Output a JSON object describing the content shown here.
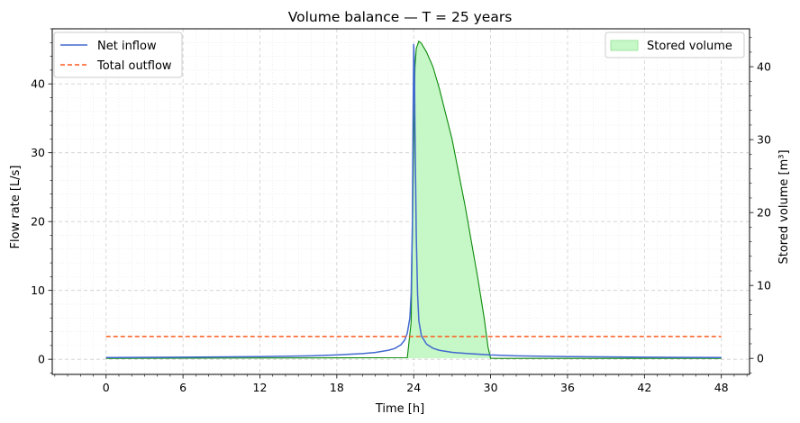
{
  "chart_data": {
    "type": "line",
    "title": "Volume balance — T = 25 years",
    "xlabel": "Time [h]",
    "ylabel_left": "Flow rate [L/s]",
    "ylabel_right": "Stored volume [m³]",
    "xlim": [
      -4.2,
      50.2
    ],
    "ylim_left": [
      -2.2,
      48
    ],
    "ylim_right": [
      -2.2,
      45.2
    ],
    "x_ticks": [
      0,
      6,
      12,
      18,
      24,
      30,
      36,
      42,
      48
    ],
    "y_ticks_left": [
      0,
      10,
      20,
      30,
      40
    ],
    "y_ticks_right": [
      0,
      10,
      20,
      30,
      40
    ],
    "grid": true,
    "series": [
      {
        "name": "Net inflow",
        "axis": "left",
        "style": "solid",
        "color": "#4169cf",
        "x": [
          0,
          6,
          12,
          16,
          18,
          20,
          21,
          22,
          22.5,
          23,
          23.3,
          23.5,
          23.7,
          23.8,
          23.9,
          23.95,
          24.0,
          24.05,
          24.1,
          24.2,
          24.3,
          24.4,
          24.6,
          25,
          25.5,
          26,
          27,
          28,
          30,
          32,
          36,
          42,
          48
        ],
        "y": [
          0.25,
          0.3,
          0.38,
          0.5,
          0.62,
          0.82,
          0.98,
          1.3,
          1.55,
          2.1,
          2.8,
          3.8,
          6.0,
          9.5,
          20,
          35,
          45.7,
          43,
          33,
          18,
          9.5,
          5.6,
          3.4,
          2.2,
          1.6,
          1.3,
          1.0,
          0.85,
          0.62,
          0.5,
          0.38,
          0.3,
          0.25
        ]
      },
      {
        "name": "Total outflow",
        "axis": "left",
        "style": "dashed",
        "color": "#ff5a1f",
        "x": [
          0,
          48
        ],
        "y": [
          3.3,
          3.3
        ]
      }
    ],
    "area": {
      "name": "Stored volume",
      "axis": "right",
      "fill": "#c6f7c6",
      "edge": "#0c8a0c",
      "x": [
        0,
        23.5,
        23.8,
        24.0,
        24.1,
        24.2,
        24.4,
        24.6,
        25.0,
        25.5,
        26.0,
        27.0,
        28.0,
        29.0,
        29.5,
        29.8,
        30.0,
        48
      ],
      "y": [
        0,
        0.1,
        5,
        30,
        40,
        42.5,
        43.5,
        43.2,
        42,
        40,
        37,
        30,
        21,
        11,
        5.5,
        1.5,
        0,
        0
      ]
    },
    "legend_left": {
      "position": "top-left"
    },
    "legend_right": {
      "position": "top-right"
    }
  }
}
